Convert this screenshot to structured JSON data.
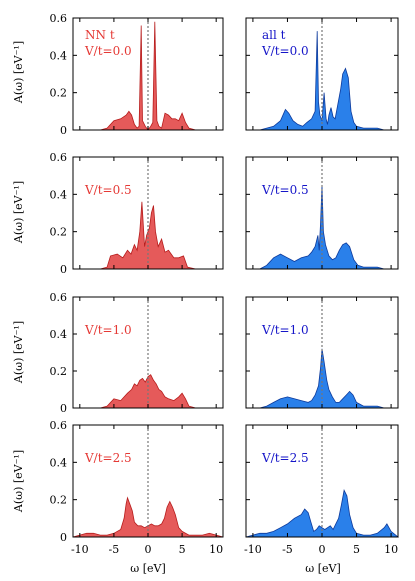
{
  "figure": {
    "ylabel": "A(ω) [eV⁻¹]",
    "xlabel": "ω [eV]",
    "colors": {
      "left": "#e55a5a",
      "left_stroke": "#b71c1c",
      "left_text": "#e53935",
      "right": "#2a80ea",
      "right_stroke": "#0d3a9c",
      "right_text": "#1515c8",
      "zero_line": "#777777"
    }
  },
  "chart_data": [
    {
      "type": "area",
      "panel": "row1-left",
      "xlim": [
        -11,
        11
      ],
      "ylim": [
        0,
        0.6
      ],
      "yticks": [
        "0",
        "0.2",
        "0.4",
        "0.6"
      ],
      "xticks": [],
      "annotations": [
        "NN t",
        "V/t=0.0"
      ],
      "color": "left",
      "x": [
        -7,
        -6,
        -5,
        -4,
        -3.2,
        -2.8,
        -2.4,
        -2,
        -1.6,
        -1.3,
        -1,
        -0.8,
        -0.4,
        0,
        0.4,
        0.7,
        1,
        1.3,
        1.6,
        2,
        2.5,
        3,
        3.5,
        4,
        4.5,
        5,
        5.5,
        6,
        7
      ],
      "y": [
        0,
        0.01,
        0.05,
        0.06,
        0.08,
        0.1,
        0.08,
        0.03,
        0.01,
        0.02,
        0.56,
        0.05,
        0.02,
        0,
        0.02,
        0.04,
        0.58,
        0.05,
        0.02,
        0.01,
        0.09,
        0.08,
        0.06,
        0.06,
        0.05,
        0.09,
        0.04,
        0.01,
        0
      ]
    },
    {
      "type": "area",
      "panel": "row1-right",
      "xlim": [
        -11,
        11
      ],
      "ylim": [
        0,
        0.6
      ],
      "yticks": [],
      "xticks": [],
      "annotations": [
        "all t",
        "V/t=0.0"
      ],
      "color": "right",
      "x": [
        -9,
        -8,
        -7,
        -6,
        -5.3,
        -4.8,
        -4.2,
        -3.5,
        -2.8,
        -2.2,
        -1.5,
        -1,
        -0.7,
        -0.5,
        -0.3,
        0,
        0.3,
        0.6,
        0.8,
        1,
        1.3,
        1.6,
        1.9,
        2.3,
        2.7,
        3,
        3.4,
        3.8,
        4.2,
        4.6,
        5,
        6,
        7,
        8,
        9
      ],
      "y": [
        0,
        0.01,
        0.02,
        0.05,
        0.11,
        0.09,
        0.05,
        0.03,
        0.02,
        0.04,
        0.06,
        0.1,
        0.53,
        0.15,
        0.08,
        0.05,
        0.2,
        0.06,
        0.03,
        0.08,
        0.12,
        0.07,
        0.06,
        0.14,
        0.22,
        0.3,
        0.33,
        0.28,
        0.1,
        0.04,
        0.02,
        0.01,
        0.01,
        0.01,
        0
      ]
    },
    {
      "type": "area",
      "panel": "row2-left",
      "xlim": [
        -11,
        11
      ],
      "ylim": [
        0,
        0.6
      ],
      "yticks": [
        "0",
        "0.2",
        "0.4",
        "0.6"
      ],
      "xticks": [],
      "annotations": [
        "V/t=0.5"
      ],
      "color": "left",
      "x": [
        -7,
        -6,
        -5.5,
        -4.5,
        -3.7,
        -3,
        -2.5,
        -2,
        -1.6,
        -1.2,
        -0.9,
        -0.5,
        -0.2,
        0.2,
        0.5,
        0.8,
        1.1,
        1.5,
        2,
        2.5,
        3,
        3.8,
        4.5,
        5.2,
        5.8,
        7
      ],
      "y": [
        0,
        0.01,
        0.07,
        0.08,
        0.06,
        0.1,
        0.08,
        0.13,
        0.1,
        0.2,
        0.36,
        0.12,
        0.18,
        0.22,
        0.3,
        0.34,
        0.2,
        0.12,
        0.16,
        0.09,
        0.1,
        0.06,
        0.06,
        0.07,
        0.01,
        0
      ]
    },
    {
      "type": "area",
      "panel": "row2-right",
      "xlim": [
        -11,
        11
      ],
      "ylim": [
        0,
        0.6
      ],
      "yticks": [],
      "xticks": [],
      "annotations": [
        "V/t=0.5"
      ],
      "color": "right",
      "x": [
        -9,
        -8,
        -7,
        -6,
        -5,
        -4,
        -3,
        -2,
        -1.5,
        -1,
        -0.6,
        -0.4,
        -0.2,
        0,
        0.2,
        0.5,
        1,
        1.5,
        2,
        2.5,
        3,
        3.5,
        4,
        4.6,
        5.2,
        6,
        7,
        8,
        9
      ],
      "y": [
        0,
        0.02,
        0.06,
        0.08,
        0.06,
        0.04,
        0.06,
        0.07,
        0.09,
        0.12,
        0.18,
        0.1,
        0.25,
        0.45,
        0.2,
        0.13,
        0.07,
        0.05,
        0.06,
        0.1,
        0.13,
        0.14,
        0.12,
        0.05,
        0.02,
        0.01,
        0.01,
        0.01,
        0
      ]
    },
    {
      "type": "area",
      "panel": "row3-left",
      "xlim": [
        -11,
        11
      ],
      "ylim": [
        0,
        0.6
      ],
      "yticks": [
        "0",
        "0.2",
        "0.4",
        "0.6"
      ],
      "xticks": [],
      "annotations": [
        "V/t=1.0"
      ],
      "color": "left",
      "x": [
        -7,
        -6,
        -5,
        -4,
        -3,
        -2.4,
        -2,
        -1.6,
        -1.2,
        -0.8,
        -0.4,
        0,
        0.4,
        0.8,
        1.2,
        1.6,
        2,
        2.5,
        3,
        3.8,
        4.5,
        5,
        5.5,
        6,
        7
      ],
      "y": [
        0,
        0.01,
        0.05,
        0.04,
        0.08,
        0.1,
        0.13,
        0.12,
        0.15,
        0.16,
        0.14,
        0.17,
        0.18,
        0.15,
        0.13,
        0.1,
        0.09,
        0.06,
        0.05,
        0.04,
        0.06,
        0.08,
        0.05,
        0.01,
        0
      ]
    },
    {
      "type": "area",
      "panel": "row3-right",
      "xlim": [
        -11,
        11
      ],
      "ylim": [
        0,
        0.6
      ],
      "yticks": [],
      "xticks": [],
      "annotations": [
        "V/t=1.0"
      ],
      "color": "right",
      "x": [
        -9,
        -8,
        -7,
        -6,
        -5,
        -4,
        -3,
        -2,
        -1.5,
        -1,
        -0.5,
        -0.2,
        0,
        0.3,
        0.7,
        1,
        1.5,
        2,
        2.5,
        3,
        3.5,
        4,
        4.5,
        5,
        6,
        7,
        8,
        9
      ],
      "y": [
        0,
        0.01,
        0.03,
        0.05,
        0.06,
        0.05,
        0.04,
        0.03,
        0.04,
        0.07,
        0.12,
        0.22,
        0.32,
        0.25,
        0.15,
        0.1,
        0.06,
        0.03,
        0.03,
        0.05,
        0.07,
        0.09,
        0.07,
        0.03,
        0.01,
        0.01,
        0.01,
        0
      ]
    },
    {
      "type": "area",
      "panel": "row4-left",
      "xlim": [
        -11,
        11
      ],
      "ylim": [
        0,
        0.6
      ],
      "yticks": [
        "0",
        "0.2",
        "0.4",
        "0.6"
      ],
      "xticks": [
        "-10",
        "-5",
        "0",
        "5",
        "10"
      ],
      "annotations": [
        "V/t=2.5"
      ],
      "color": "left",
      "x": [
        -11,
        -10,
        -9,
        -8,
        -7,
        -6,
        -5,
        -4,
        -3.5,
        -3.2,
        -3,
        -2.6,
        -2.3,
        -2,
        -1.5,
        -1,
        -0.5,
        0,
        0.5,
        1,
        1.5,
        2,
        2.4,
        2.8,
        3.2,
        3.6,
        4,
        4.5,
        5,
        6,
        7,
        8,
        9,
        10,
        11
      ],
      "y": [
        0,
        0.01,
        0.02,
        0.02,
        0.01,
        0.01,
        0.02,
        0.04,
        0.1,
        0.18,
        0.21,
        0.17,
        0.14,
        0.08,
        0.06,
        0.06,
        0.05,
        0.06,
        0.07,
        0.06,
        0.06,
        0.07,
        0.1,
        0.16,
        0.19,
        0.16,
        0.12,
        0.05,
        0.03,
        0.01,
        0.01,
        0.01,
        0.02,
        0.01,
        0
      ]
    },
    {
      "type": "area",
      "panel": "row4-right",
      "xlim": [
        -11,
        11
      ],
      "ylim": [
        0,
        0.6
      ],
      "yticks": [],
      "xticks": [
        "-10",
        "-5",
        "0",
        "5",
        "10"
      ],
      "annotations": [
        "V/t=2.5"
      ],
      "color": "right",
      "x": [
        -11,
        -10,
        -9,
        -8,
        -7,
        -6,
        -5,
        -4,
        -3,
        -2.5,
        -2,
        -1.6,
        -1.2,
        -0.8,
        -0.4,
        0,
        0.4,
        0.8,
        1.2,
        1.6,
        2,
        2.4,
        2.8,
        3.2,
        3.6,
        4,
        4.5,
        5,
        6,
        7,
        8,
        9,
        9.4,
        10,
        11
      ],
      "y": [
        0,
        0.01,
        0.02,
        0.02,
        0.03,
        0.05,
        0.07,
        0.1,
        0.12,
        0.15,
        0.13,
        0.08,
        0.03,
        0.04,
        0.06,
        0.05,
        0.04,
        0.05,
        0.06,
        0.04,
        0.07,
        0.1,
        0.17,
        0.25,
        0.22,
        0.12,
        0.05,
        0.02,
        0.01,
        0.01,
        0.02,
        0.05,
        0.07,
        0.03,
        0
      ]
    }
  ]
}
